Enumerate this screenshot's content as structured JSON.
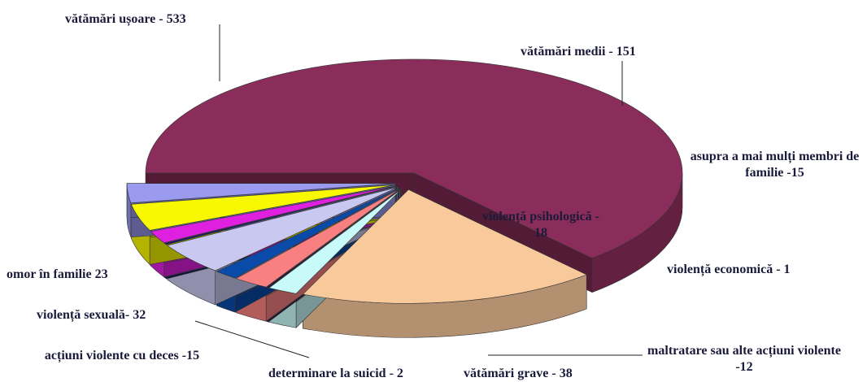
{
  "chart_data": {
    "type": "pie3d",
    "categories": [
      "vătămări ușoare - 533",
      "vătămări medii - 151",
      "asupra a mai mulți membri de familie -15",
      "violență economică - 1",
      "violență psihologică - 18",
      "maltratare sau alte acțiuni violente -12",
      "vătămări grave - 38",
      "determinare la suicid - 2",
      "acțiuni violente cu deces -15",
      "violență sexuală- 32",
      "omor în familie 23"
    ],
    "values": [
      533,
      151,
      15,
      1,
      18,
      12,
      38,
      2,
      15,
      32,
      23
    ],
    "colors": [
      "#8b2d5a",
      "#f8c99b",
      "#c8fafa",
      "#2a0a3a",
      "#f88080",
      "#0a4aa8",
      "#c8c8f0",
      "#1a1a6a",
      "#e020e0",
      "#f8f800",
      "#9a9af0"
    ]
  }
}
